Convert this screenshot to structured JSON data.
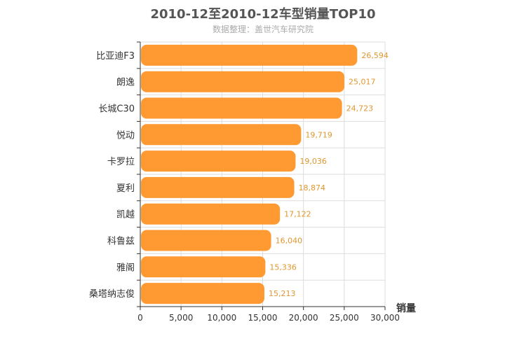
{
  "chart_data": {
    "type": "bar",
    "orientation": "horizontal",
    "title": "2010-12至2010-12车型销量TOP10",
    "subtitle": "数据整理：盖世汽车研究院",
    "xlabel": "销量",
    "ylabel": "",
    "xlim": [
      0,
      30000
    ],
    "x_ticks": [
      0,
      5000,
      10000,
      15000,
      20000,
      25000,
      30000
    ],
    "x_tick_labels": [
      "0",
      "5,000",
      "10,000",
      "15,000",
      "20,000",
      "25,000",
      "30,000"
    ],
    "categories": [
      "比亚迪F3",
      "朗逸",
      "长城C30",
      "悦动",
      "卡罗拉",
      "夏利",
      "凯越",
      "科鲁兹",
      "雅阁",
      "桑塔纳志俊"
    ],
    "values": [
      26594,
      25017,
      24723,
      19719,
      19036,
      18874,
      17122,
      16040,
      15336,
      15213
    ],
    "value_labels": [
      "26,594",
      "25,017",
      "24,723",
      "19,719",
      "19,036",
      "18,874",
      "17,122",
      "16,040",
      "15,336",
      "15,213"
    ],
    "grid": true,
    "colors": {
      "bar": "#ff9a33",
      "label": "#e0972f",
      "grid": "#dddddd",
      "axis": "#333333"
    }
  }
}
